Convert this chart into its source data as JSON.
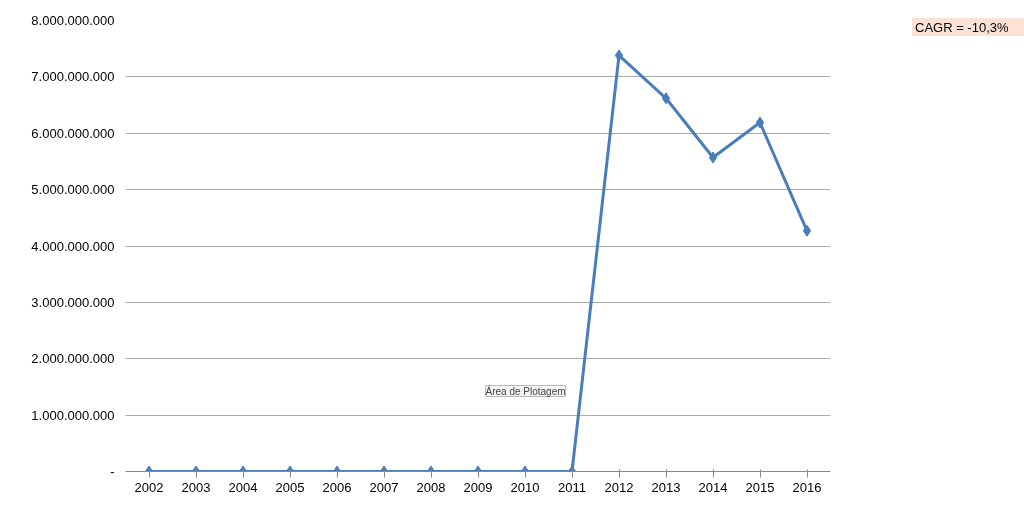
{
  "chart_data": {
    "type": "line",
    "categories": [
      "2002",
      "2003",
      "2004",
      "2005",
      "2006",
      "2007",
      "2008",
      "2009",
      "2010",
      "2011",
      "2012",
      "2013",
      "2014",
      "2015",
      "2016"
    ],
    "series": [
      {
        "color": "#4a7ebb",
        "values": [
          0,
          0,
          0,
          0,
          0,
          0,
          0,
          0,
          0,
          0,
          7380000000,
          6620000000,
          5570000000,
          6190000000,
          4270000000
        ]
      }
    ],
    "ylim": [
      0,
      8000000000
    ],
    "yticks": [
      {
        "value": 0,
        "label": "-"
      },
      {
        "value": 1000000000,
        "label": "1.000.000.000"
      },
      {
        "value": 2000000000,
        "label": "2.000.000.000"
      },
      {
        "value": 3000000000,
        "label": "3.000.000.000"
      },
      {
        "value": 4000000000,
        "label": "4.000.000.000"
      },
      {
        "value": 5000000000,
        "label": "5.000.000.000"
      },
      {
        "value": 6000000000,
        "label": "6.000.000.000"
      },
      {
        "value": 7000000000,
        "label": "7.000.000.000"
      },
      {
        "value": 8000000000,
        "label": "8.000.000.000"
      }
    ],
    "grid": "y",
    "marker": "diamond",
    "line_style": "solid",
    "annotations": [
      "CAGR = -10,3%",
      "Área de Plotagem"
    ]
  }
}
